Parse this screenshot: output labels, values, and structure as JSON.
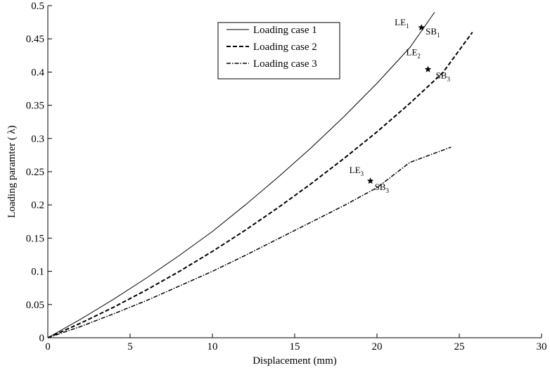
{
  "chart_data": {
    "type": "line",
    "title": "",
    "xlabel": "Displacement (mm)",
    "ylabel": "Loading paramter ( λ)",
    "xlim": [
      0,
      30
    ],
    "ylim": [
      0,
      0.5
    ],
    "xticks": [
      0,
      5,
      10,
      15,
      20,
      25,
      30
    ],
    "xtick_labels": [
      "0",
      "5",
      "10",
      "15",
      "20",
      "25",
      "30"
    ],
    "yticks": [
      0,
      0.05,
      0.1,
      0.15,
      0.2,
      0.25,
      0.3,
      0.35,
      0.4,
      0.45,
      0.5
    ],
    "ytick_labels": [
      "0",
      "0.05",
      "0.1",
      "0.15",
      "0.2",
      "0.25",
      "0.3",
      "0.35",
      "0.4",
      "0.45",
      "0.5"
    ],
    "grid": false,
    "legend": "top-center",
    "series": [
      {
        "name": "Loading case 1",
        "style": "solid",
        "x": [
          0,
          2,
          4,
          6,
          8,
          10,
          12,
          14,
          16,
          18,
          20,
          22,
          23.5
        ],
        "y": [
          0,
          0.028,
          0.058,
          0.09,
          0.124,
          0.16,
          0.2,
          0.242,
          0.286,
          0.333,
          0.383,
          0.437,
          0.49
        ]
      },
      {
        "name": "Loading case 2",
        "style": "dashed",
        "x": [
          0,
          2,
          4,
          6,
          8,
          10,
          12,
          14,
          16,
          18,
          20,
          22,
          24,
          25.8
        ],
        "y": [
          0,
          0.022,
          0.046,
          0.072,
          0.1,
          0.13,
          0.162,
          0.196,
          0.232,
          0.27,
          0.31,
          0.353,
          0.399,
          0.46
        ]
      },
      {
        "name": "Loading case 3",
        "style": "dashdot",
        "x": [
          0,
          2,
          4,
          6,
          8,
          10,
          12,
          14,
          16,
          18,
          20,
          22,
          24.5
        ],
        "y": [
          0,
          0.017,
          0.036,
          0.056,
          0.078,
          0.1,
          0.124,
          0.149,
          0.174,
          0.199,
          0.226,
          0.264,
          0.287
        ]
      }
    ],
    "annotations": [
      {
        "x": 22.7,
        "y": 0.467,
        "label_a": "LE",
        "sub_a": "1",
        "label_b": "SB",
        "sub_b": "1"
      },
      {
        "x": 23.1,
        "y": 0.404,
        "label_a": "LE",
        "sub_a": "2",
        "label_b": "SB",
        "sub_b": "3"
      },
      {
        "x": 19.6,
        "y": 0.236,
        "label_a": "LE",
        "sub_a": "3",
        "label_b": "SB",
        "sub_b": "3"
      }
    ]
  }
}
